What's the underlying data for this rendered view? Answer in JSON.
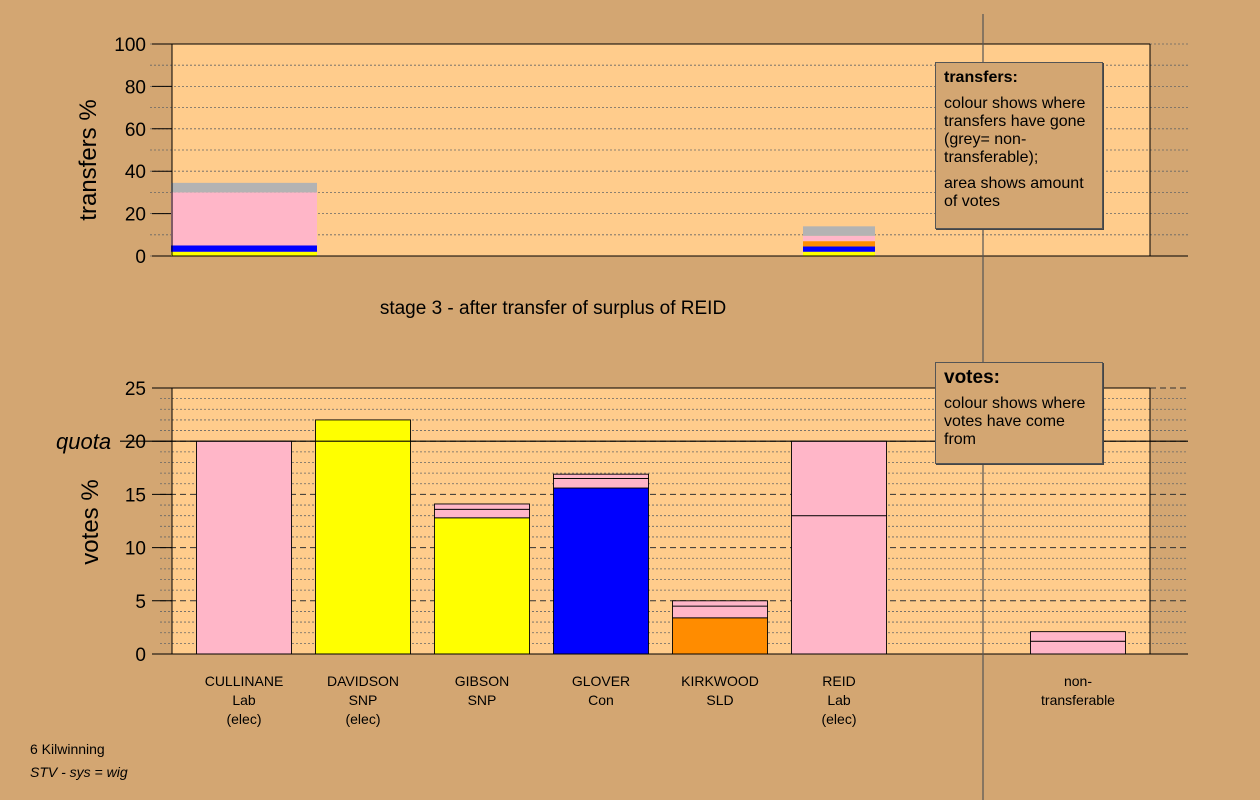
{
  "chart_data": [
    {
      "type": "bar",
      "stacked": true,
      "ylabel": "transfers %",
      "ylim": [
        0,
        100
      ],
      "yticks": [
        0,
        20,
        40,
        60,
        80,
        100
      ],
      "grid": true,
      "title": "stage 3 - after transfer of surplus of REID",
      "bars": [
        {
          "column": "CULLINANE",
          "segments": [
            {
              "color": "#ffff00",
              "value": 2
            },
            {
              "color": "#0000ff",
              "value": 3
            },
            {
              "color": "#ffb6c8",
              "value": 25
            },
            {
              "color": "#b3b3b3",
              "value": 4.5
            }
          ]
        },
        {
          "column": "REID",
          "segments": [
            {
              "color": "#ffff00",
              "value": 2
            },
            {
              "color": "#0000ff",
              "value": 2.5
            },
            {
              "color": "#ff8c00",
              "value": 2.5
            },
            {
              "color": "#ffb6c8",
              "value": 2.5
            },
            {
              "color": "#b3b3b3",
              "value": 4.5
            }
          ]
        }
      ]
    },
    {
      "type": "bar",
      "stacked": true,
      "ylabel": "votes %",
      "ylim": [
        0,
        25
      ],
      "yticks": [
        0,
        5,
        10,
        15,
        20,
        25
      ],
      "quota": 20,
      "quota_label": "quota",
      "grid": true,
      "categories": [
        [
          "CULLINANE",
          "Lab",
          "(elec)"
        ],
        [
          "DAVIDSON",
          "SNP",
          "(elec)"
        ],
        [
          "GIBSON",
          "SNP"
        ],
        [
          "GLOVER",
          "Con"
        ],
        [
          "KIRKWOOD",
          "SLD"
        ],
        [
          "REID",
          "Lab",
          "(elec)"
        ],
        [
          "non-",
          "transferable"
        ]
      ],
      "bars": [
        {
          "name": "CULLINANE",
          "segments": [
            {
              "color": "#ffb6c8",
              "value": 20
            }
          ]
        },
        {
          "name": "DAVIDSON",
          "segments": [
            {
              "color": "#ffff00",
              "value": 22
            }
          ]
        },
        {
          "name": "GIBSON",
          "segments": [
            {
              "color": "#ffff00",
              "value": 12.8
            },
            {
              "color": "#ffb6c8",
              "value": 0.8
            },
            {
              "color": "#ffb6c8",
              "value": 0.5
            }
          ]
        },
        {
          "name": "GLOVER",
          "segments": [
            {
              "color": "#0000ff",
              "value": 15.6
            },
            {
              "color": "#ffb6c8",
              "value": 0.9
            },
            {
              "color": "#ffb6c8",
              "value": 0.4
            }
          ]
        },
        {
          "name": "KIRKWOOD",
          "segments": [
            {
              "color": "#ff8c00",
              "value": 3.4
            },
            {
              "color": "#ffb6c8",
              "value": 1.1
            },
            {
              "color": "#ffb6c8",
              "value": 0.5
            }
          ]
        },
        {
          "name": "REID",
          "segments": [
            {
              "color": "#ffb6c8",
              "value": 13
            },
            {
              "color": "#ffb6c8",
              "value": 7
            }
          ]
        },
        {
          "name": "non-transferable",
          "segments": [
            {
              "color": "#ffb6c8",
              "value": 1.2
            },
            {
              "color": "#ffb6c8",
              "value": 0.9
            }
          ]
        }
      ]
    }
  ],
  "legend_transfers": {
    "title": "transfers:",
    "line1": "colour shows where transfers have gone (grey= non-transferable);",
    "line2": "area shows amount of votes"
  },
  "legend_votes": {
    "title": "votes:",
    "line1": "colour shows where votes have come from"
  },
  "footer": {
    "ward": "6 Kilwinning",
    "system": "STV - sys = wig"
  }
}
